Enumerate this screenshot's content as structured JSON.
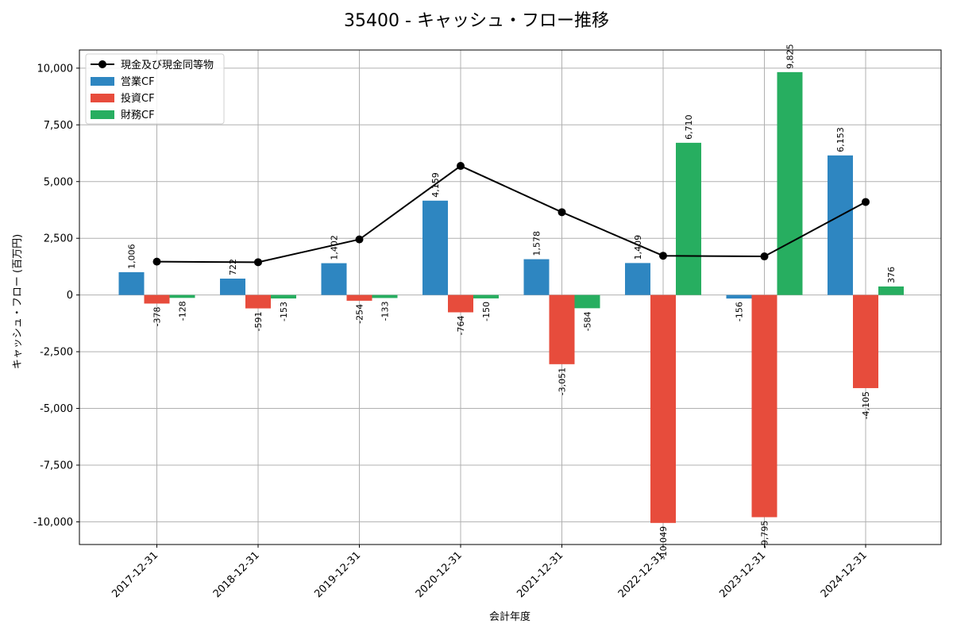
{
  "chart_data": {
    "type": "bar",
    "title": "35400 - キャッシュ・フロー推移",
    "xlabel": "会計年度",
    "ylabel": "キャッシュ・フロー (百万円)",
    "categories": [
      "2017-12-31",
      "2018-12-31",
      "2019-12-31",
      "2020-12-31",
      "2021-12-31",
      "2022-12-31",
      "2023-12-31",
      "2024-12-31"
    ],
    "series": [
      {
        "name": "営業CF",
        "kind": "bar",
        "color": "#2e86c1",
        "values": [
          1006,
          722,
          1402,
          4159,
          1578,
          1409,
          -156,
          6153
        ],
        "labels": [
          "1,006",
          "722",
          "1,402",
          "4,159",
          "1,578",
          "1,409",
          "-156",
          "6,153"
        ]
      },
      {
        "name": "投資CF",
        "kind": "bar",
        "color": "#e74c3c",
        "values": [
          -378,
          -591,
          -254,
          -764,
          -3051,
          -10049,
          -9795,
          -4105
        ],
        "labels": [
          "-378",
          "-591",
          "-254",
          "-764",
          "-3,051",
          "-10,049",
          "-9,795",
          "-4,105"
        ]
      },
      {
        "name": "財務CF",
        "kind": "bar",
        "color": "#27ae60",
        "values": [
          -128,
          -153,
          -133,
          -150,
          -584,
          6710,
          9825,
          376
        ],
        "labels": [
          "-128",
          "-153",
          "-133",
          "-150",
          "-584",
          "6,710",
          "9,825",
          "376"
        ]
      },
      {
        "name": "現金及び現金同等物",
        "kind": "line",
        "color": "#000000",
        "values": [
          1470,
          1445,
          2450,
          5690,
          3650,
          1730,
          1700,
          4100
        ]
      }
    ],
    "ylim": [
      -11000,
      10800
    ],
    "yticks": [
      -10000,
      -7500,
      -5000,
      -2500,
      0,
      2500,
      5000,
      7500,
      10000
    ],
    "ytick_labels": [
      "-10,000",
      "-7,500",
      "-5,000",
      "-2,500",
      "0",
      "2,500",
      "5,000",
      "7,500",
      "10,000"
    ],
    "grid": true,
    "legend_position": "top-left"
  }
}
